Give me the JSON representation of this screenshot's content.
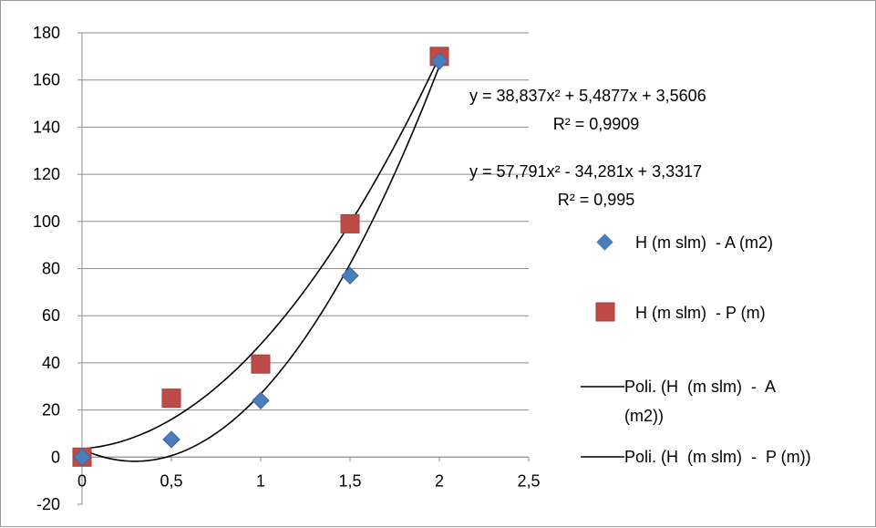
{
  "chart_data": {
    "type": "scatter",
    "title": "",
    "xlabel": "",
    "ylabel": "",
    "xlim": [
      0,
      2.5
    ],
    "ylim": [
      -20,
      180
    ],
    "x_ticks": [
      0,
      0.5,
      1,
      1.5,
      2,
      2.5
    ],
    "x_tick_labels": [
      "0",
      "0,5",
      "1",
      "1,5",
      "2",
      "2,5"
    ],
    "y_ticks": [
      -20,
      0,
      20,
      40,
      60,
      80,
      100,
      120,
      140,
      160,
      180
    ],
    "y_tick_labels": [
      "-20",
      "0",
      "20",
      "40",
      "60",
      "80",
      "100",
      "120",
      "140",
      "160",
      "180"
    ],
    "grid": "horizontal",
    "legend_position": "right",
    "series": [
      {
        "name": "H (m slm)  - A (m2)",
        "marker": "diamond",
        "color": "#4a7ebb",
        "points": [
          {
            "x": 0,
            "y": 0
          },
          {
            "x": 0.5,
            "y": 7.5
          },
          {
            "x": 1,
            "y": 24
          },
          {
            "x": 1.5,
            "y": 77
          },
          {
            "x": 2,
            "y": 168
          }
        ]
      },
      {
        "name": "H (m slm)  - P (m)",
        "marker": "square",
        "color": "#be4b48",
        "points": [
          {
            "x": 0,
            "y": 0
          },
          {
            "x": 0.5,
            "y": 25
          },
          {
            "x": 1,
            "y": 39.5
          },
          {
            "x": 1.5,
            "y": 99
          },
          {
            "x": 2,
            "y": 170
          }
        ]
      }
    ],
    "trendlines": [
      {
        "name_line1": "Poli. (H  (m slm)  -  A",
        "name_line2": "(m2))",
        "type": "polynomial",
        "coefficients": [
          57.791,
          -34.281,
          3.3317
        ],
        "equation": "y = 57,791x² - 34,281x + 3,3317",
        "r2": "R² = 0,995",
        "color": "#000000"
      },
      {
        "name_line1": "Poli. (H  (m slm)  -  P (m))",
        "type": "polynomial",
        "coefficients": [
          38.837,
          5.4877,
          3.5606
        ],
        "equation": "y = 38,837x² + 5,4877x + 3,5606",
        "r2": "R² = 0,9909",
        "color": "#000000"
      }
    ]
  }
}
